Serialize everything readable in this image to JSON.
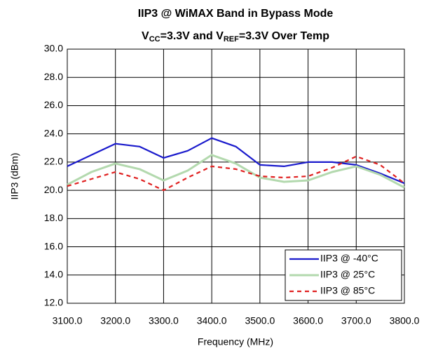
{
  "chart_data": {
    "type": "line",
    "title": "IIP3 @ WiMAX Band in Bypass Mode",
    "subtitle_parts": [
      "V",
      "CC",
      "=3.3V and V",
      "REF",
      "=3.3V Over Temp"
    ],
    "x_label": "Frequency (MHz)",
    "y_label": "IIP3 (dBm)",
    "x": [
      3100,
      3150,
      3200,
      3250,
      3300,
      3350,
      3400,
      3450,
      3500,
      3550,
      3600,
      3650,
      3700,
      3750,
      3800
    ],
    "series": [
      {
        "name": "IIP3 @ -40°C",
        "color": "#1a1acc",
        "dash": "solid",
        "values": [
          21.7,
          22.5,
          23.3,
          23.1,
          22.3,
          22.8,
          23.7,
          23.1,
          21.8,
          21.7,
          22.0,
          22.0,
          21.8,
          21.2,
          20.5
        ]
      },
      {
        "name": "IIP3 @ 25°C",
        "color": "#b3d9ae",
        "dash": "solid",
        "values": [
          20.4,
          21.3,
          21.9,
          21.5,
          20.7,
          21.4,
          22.5,
          21.9,
          20.9,
          20.6,
          20.7,
          21.3,
          21.7,
          21.1,
          20.2
        ]
      },
      {
        "name": "IIP3 @ 85°C",
        "color": "#e02020",
        "dash": "dashed",
        "values": [
          20.3,
          20.8,
          21.3,
          20.8,
          20.0,
          20.9,
          21.7,
          21.5,
          21.0,
          20.9,
          21.0,
          21.6,
          22.4,
          21.8,
          20.5
        ]
      }
    ],
    "xlim": [
      3100,
      3800
    ],
    "xticks": [
      {
        "value": 3100,
        "label": "3100.0"
      },
      {
        "value": 3200,
        "label": "3200.0"
      },
      {
        "value": 3300,
        "label": "3300.0"
      },
      {
        "value": 3400,
        "label": "3400.0"
      },
      {
        "value": 3500,
        "label": "3500.0"
      },
      {
        "value": 3600,
        "label": "3600.0"
      },
      {
        "value": 3700,
        "label": "3700.0"
      },
      {
        "value": 3800,
        "label": "3800.0"
      }
    ],
    "ylim": [
      12,
      30
    ],
    "yticks": [
      {
        "value": 12,
        "label": "12.0"
      },
      {
        "value": 14,
        "label": "14.0"
      },
      {
        "value": 16,
        "label": "16.0"
      },
      {
        "value": 18,
        "label": "18.0"
      },
      {
        "value": 20,
        "label": "20.0"
      },
      {
        "value": 22,
        "label": "22.0"
      },
      {
        "value": 24,
        "label": "24.0"
      },
      {
        "value": 26,
        "label": "26.0"
      },
      {
        "value": 28,
        "label": "28.0"
      },
      {
        "value": 30,
        "label": "30.0"
      }
    ],
    "grid": true,
    "legend": "lower right"
  }
}
